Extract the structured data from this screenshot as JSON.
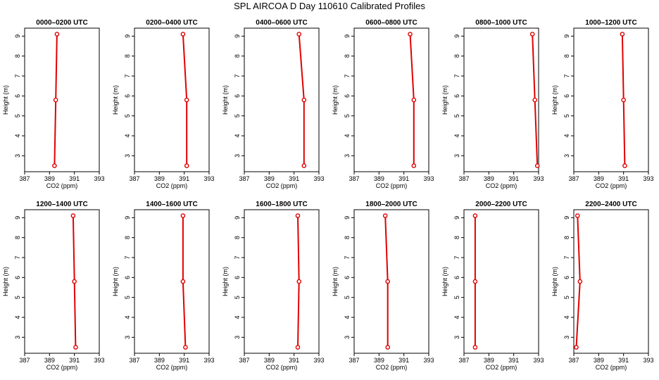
{
  "title": "SPL AIRCOA D  Day 110610  Calibrated Profiles",
  "colors": {
    "series": "#e00000",
    "axis": "#000000",
    "background": "#ffffff"
  },
  "chart_data": [
    {
      "type": "line",
      "title": "0000–0200 UTC",
      "xlabel": "CO2 (ppm)",
      "ylabel": "Height (m)",
      "xlim": [
        387,
        393
      ],
      "ylim": [
        2.2,
        9.4
      ],
      "xticks": [
        387,
        389,
        391,
        393
      ],
      "yticks": [
        3,
        4,
        5,
        6,
        7,
        8,
        9
      ],
      "points": [
        {
          "x": 389.6,
          "y": 9.1
        },
        {
          "x": 389.5,
          "y": 5.8
        },
        {
          "x": 389.4,
          "y": 2.5
        }
      ]
    },
    {
      "type": "line",
      "title": "0200–0400 UTC",
      "xlabel": "CO2 (ppm)",
      "ylabel": "Height (m)",
      "xlim": [
        387,
        393
      ],
      "ylim": [
        2.2,
        9.4
      ],
      "xticks": [
        387,
        389,
        391,
        393
      ],
      "yticks": [
        3,
        4,
        5,
        6,
        7,
        8,
        9
      ],
      "points": [
        {
          "x": 390.9,
          "y": 9.1
        },
        {
          "x": 391.2,
          "y": 5.8
        },
        {
          "x": 391.2,
          "y": 2.5
        }
      ]
    },
    {
      "type": "line",
      "title": "0400–0600 UTC",
      "xlabel": "CO2 (ppm)",
      "ylabel": "Height (m)",
      "xlim": [
        387,
        393
      ],
      "ylim": [
        2.2,
        9.4
      ],
      "xticks": [
        387,
        389,
        391,
        393
      ],
      "yticks": [
        3,
        4,
        5,
        6,
        7,
        8,
        9
      ],
      "points": [
        {
          "x": 391.4,
          "y": 9.1
        },
        {
          "x": 391.8,
          "y": 5.8
        },
        {
          "x": 391.8,
          "y": 2.5
        }
      ]
    },
    {
      "type": "line",
      "title": "0600–0800 UTC",
      "xlabel": "CO2 (ppm)",
      "ylabel": "Height (m)",
      "xlim": [
        387,
        393
      ],
      "ylim": [
        2.2,
        9.4
      ],
      "xticks": [
        387,
        389,
        391,
        393
      ],
      "yticks": [
        3,
        4,
        5,
        6,
        7,
        8,
        9
      ],
      "points": [
        {
          "x": 391.5,
          "y": 9.1
        },
        {
          "x": 391.8,
          "y": 5.8
        },
        {
          "x": 391.8,
          "y": 2.5
        }
      ]
    },
    {
      "type": "line",
      "title": "0800–1000 UTC",
      "xlabel": "CO2 (ppm)",
      "ylabel": "Height (m)",
      "xlim": [
        387,
        393
      ],
      "ylim": [
        2.2,
        9.4
      ],
      "xticks": [
        387,
        389,
        391,
        393
      ],
      "yticks": [
        3,
        4,
        5,
        6,
        7,
        8,
        9
      ],
      "points": [
        {
          "x": 392.5,
          "y": 9.1
        },
        {
          "x": 392.7,
          "y": 5.8
        },
        {
          "x": 392.9,
          "y": 2.5
        }
      ]
    },
    {
      "type": "line",
      "title": "1000–1200 UTC",
      "xlabel": "CO2 (ppm)",
      "ylabel": "Height (m)",
      "xlim": [
        387,
        393
      ],
      "ylim": [
        2.2,
        9.4
      ],
      "xticks": [
        387,
        389,
        391,
        393
      ],
      "yticks": [
        3,
        4,
        5,
        6,
        7,
        8,
        9
      ],
      "points": [
        {
          "x": 390.9,
          "y": 9.1
        },
        {
          "x": 391.0,
          "y": 5.8
        },
        {
          "x": 391.1,
          "y": 2.5
        }
      ]
    },
    {
      "type": "line",
      "title": "1200–1400 UTC",
      "xlabel": "CO2 (ppm)",
      "ylabel": "Height (m)",
      "xlim": [
        387,
        393
      ],
      "ylim": [
        2.2,
        9.4
      ],
      "xticks": [
        387,
        389,
        391,
        393
      ],
      "yticks": [
        3,
        4,
        5,
        6,
        7,
        8,
        9
      ],
      "points": [
        {
          "x": 390.9,
          "y": 9.1
        },
        {
          "x": 391.0,
          "y": 5.8
        },
        {
          "x": 391.1,
          "y": 2.5
        }
      ]
    },
    {
      "type": "line",
      "title": "1400–1600 UTC",
      "xlabel": "CO2 (ppm)",
      "ylabel": "Height (m)",
      "xlim": [
        387,
        393
      ],
      "ylim": [
        2.2,
        9.4
      ],
      "xticks": [
        387,
        389,
        391,
        393
      ],
      "yticks": [
        3,
        4,
        5,
        6,
        7,
        8,
        9
      ],
      "points": [
        {
          "x": 390.9,
          "y": 9.1
        },
        {
          "x": 390.9,
          "y": 5.8
        },
        {
          "x": 391.1,
          "y": 2.5
        }
      ]
    },
    {
      "type": "line",
      "title": "1600–1800 UTC",
      "xlabel": "CO2 (ppm)",
      "ylabel": "Height (m)",
      "xlim": [
        387,
        393
      ],
      "ylim": [
        2.2,
        9.4
      ],
      "xticks": [
        387,
        389,
        391,
        393
      ],
      "yticks": [
        3,
        4,
        5,
        6,
        7,
        8,
        9
      ],
      "points": [
        {
          "x": 391.3,
          "y": 9.1
        },
        {
          "x": 391.4,
          "y": 5.8
        },
        {
          "x": 391.3,
          "y": 2.5
        }
      ]
    },
    {
      "type": "line",
      "title": "1800–2000 UTC",
      "xlabel": "CO2 (ppm)",
      "ylabel": "Height (m)",
      "xlim": [
        387,
        393
      ],
      "ylim": [
        2.2,
        9.4
      ],
      "xticks": [
        387,
        389,
        391,
        393
      ],
      "yticks": [
        3,
        4,
        5,
        6,
        7,
        8,
        9
      ],
      "points": [
        {
          "x": 389.5,
          "y": 9.1
        },
        {
          "x": 389.7,
          "y": 5.8
        },
        {
          "x": 389.7,
          "y": 2.5
        }
      ]
    },
    {
      "type": "line",
      "title": "2000–2200 UTC",
      "xlabel": "CO2 (ppm)",
      "ylabel": "Height (m)",
      "xlim": [
        387,
        393
      ],
      "ylim": [
        2.2,
        9.4
      ],
      "xticks": [
        387,
        389,
        391,
        393
      ],
      "yticks": [
        3,
        4,
        5,
        6,
        7,
        8,
        9
      ],
      "points": [
        {
          "x": 387.9,
          "y": 9.1
        },
        {
          "x": 387.9,
          "y": 5.8
        },
        {
          "x": 387.9,
          "y": 2.5
        }
      ]
    },
    {
      "type": "line",
      "title": "2200–2400 UTC",
      "xlabel": "CO2 (ppm)",
      "ylabel": "Height (m)",
      "xlim": [
        387,
        393
      ],
      "ylim": [
        2.2,
        9.4
      ],
      "xticks": [
        387,
        389,
        391,
        393
      ],
      "yticks": [
        3,
        4,
        5,
        6,
        7,
        8,
        9
      ],
      "points": [
        {
          "x": 387.3,
          "y": 9.1
        },
        {
          "x": 387.5,
          "y": 5.8
        },
        {
          "x": 387.2,
          "y": 2.5
        }
      ]
    }
  ]
}
